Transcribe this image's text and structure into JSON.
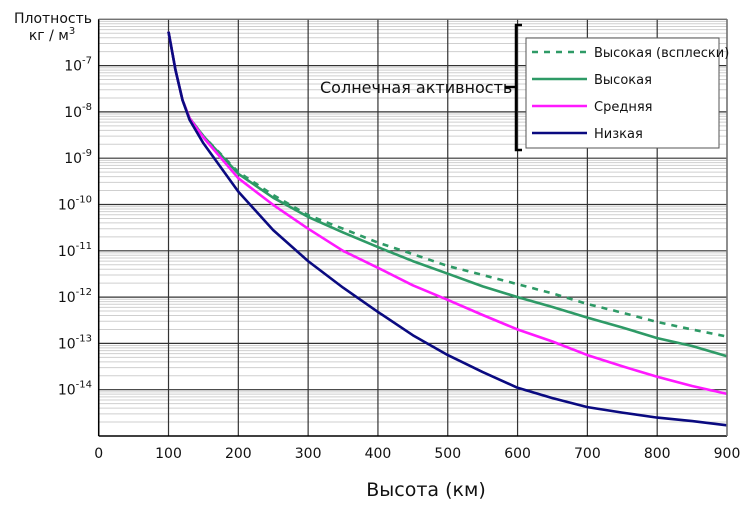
{
  "chart_data": {
    "type": "line",
    "title": "",
    "xlabel": "Высота (км)",
    "ylabel_line1": "Плотность",
    "ylabel_line2": "кг / м",
    "ylabel_sup": "3",
    "xlim": [
      0,
      900
    ],
    "ylim": [
      1e-15,
      1e-06
    ],
    "y_scale": "log",
    "grid": true,
    "x_ticks": [
      0,
      100,
      200,
      300,
      400,
      500,
      600,
      700,
      800,
      900
    ],
    "y_tick_exponents": [
      -7,
      -8,
      -9,
      -10,
      -11,
      -12,
      -13,
      -14
    ],
    "y_tick_base": "10",
    "legend_position": "top-right",
    "legend_title": "Солнечная активность",
    "series": [
      {
        "name": "Высокая (всплески)",
        "color": "#2e9a66",
        "dash": true,
        "x": [
          100,
          110,
          120,
          130,
          150,
          200,
          250,
          300,
          350,
          400,
          450,
          500,
          550,
          600,
          650,
          700,
          750,
          800,
          850,
          900
        ],
        "y": [
          5.4e-07,
          8e-08,
          1.8e-08,
          7.4e-09,
          3e-09,
          5e-10,
          1.6e-10,
          5.9e-11,
          3e-11,
          1.5e-11,
          8.5e-12,
          4.7e-12,
          3e-12,
          1.9e-12,
          1.2e-12,
          7.1e-13,
          4.6e-13,
          2.9e-13,
          2e-13,
          1.4e-13
        ]
      },
      {
        "name": "Высокая",
        "color": "#2e9a66",
        "dash": false,
        "x": [
          100,
          110,
          120,
          130,
          150,
          200,
          250,
          300,
          350,
          400,
          450,
          500,
          550,
          600,
          650,
          700,
          750,
          800,
          850,
          900
        ],
        "y": [
          5.4e-07,
          8e-08,
          1.8e-08,
          7.4e-09,
          3e-09,
          4.6e-10,
          1.4e-10,
          5.4e-11,
          2.5e-11,
          1.2e-11,
          6e-12,
          3.2e-12,
          1.7e-12,
          1e-12,
          6.1e-13,
          3.6e-13,
          2.2e-13,
          1.3e-13,
          8.8e-14,
          5.3e-14
        ]
      },
      {
        "name": "Средняя",
        "color": "#ff19ff",
        "dash": false,
        "x": [
          100,
          110,
          120,
          130,
          150,
          200,
          250,
          300,
          350,
          400,
          450,
          500,
          550,
          600,
          650,
          700,
          750,
          800,
          850,
          900
        ],
        "y": [
          5.4e-07,
          8e-08,
          1.8e-08,
          7.4e-09,
          2.8e-09,
          3.7e-10,
          9.8e-11,
          3e-11,
          1e-11,
          4.3e-12,
          1.8e-12,
          8.7e-13,
          4.1e-13,
          2e-13,
          1.1e-13,
          5.6e-14,
          3.2e-14,
          1.9e-14,
          1.2e-14,
          8.1e-15
        ]
      },
      {
        "name": "Низкая",
        "color": "#0a0a80",
        "dash": false,
        "x": [
          100,
          110,
          120,
          130,
          150,
          200,
          250,
          300,
          350,
          400,
          450,
          500,
          550,
          600,
          650,
          700,
          750,
          800,
          850,
          900
        ],
        "y": [
          5.4e-07,
          8e-08,
          1.8e-08,
          6.8e-09,
          2.1e-09,
          1.9e-10,
          2.8e-11,
          6e-12,
          1.6e-12,
          4.8e-13,
          1.5e-13,
          5.6e-14,
          2.4e-14,
          1.1e-14,
          6.6e-15,
          4.2e-15,
          3.2e-15,
          2.5e-15,
          2.1e-15,
          1.7e-15
        ]
      }
    ]
  }
}
